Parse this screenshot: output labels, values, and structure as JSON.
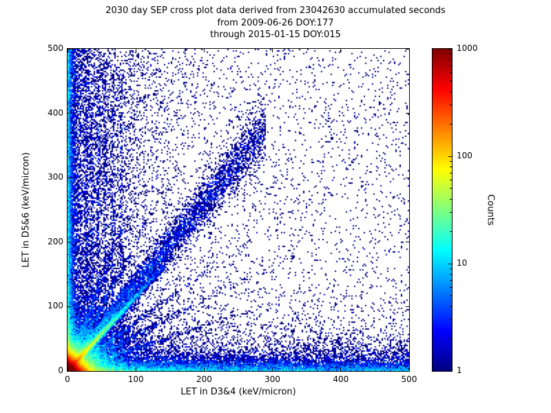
{
  "chart_data": {
    "type": "heatmap",
    "title": "2030 day SEP cross plot data derived from 23042630 accumulated seconds",
    "subtitle": [
      "from 2009-06-26 DOY:177",
      "through 2015-01-15 DOY:015"
    ],
    "xlabel": "LET in D3&4 (keV/micron)",
    "ylabel": "LET in D5&6 (keV/micron)",
    "xlim": [
      0,
      500
    ],
    "ylim": [
      0,
      500
    ],
    "xticks": [
      0,
      100,
      200,
      300,
      400,
      500
    ],
    "yticks": [
      0,
      100,
      200,
      300,
      400,
      500
    ],
    "grid": false,
    "colorbar": {
      "label": "Counts",
      "scale": "log",
      "range": [
        1,
        1000
      ],
      "ticks": [
        1,
        10,
        100,
        1000
      ],
      "colormap": "jet",
      "stops": [
        {
          "color": "#000080",
          "pos": 0
        },
        {
          "color": "#0000ff",
          "pos": 12.5
        },
        {
          "color": "#00ffff",
          "pos": 37.5
        },
        {
          "color": "#ffff00",
          "pos": 62.5
        },
        {
          "color": "#ff0000",
          "pos": 87.5
        },
        {
          "color": "#800000",
          "pos": 100
        }
      ]
    },
    "features": [
      {
        "name": "background-sparse",
        "kind": "uniform",
        "n": 3500,
        "x": [
          0,
          500
        ],
        "y": [
          0,
          500
        ]
      },
      {
        "name": "low-x-haze",
        "kind": "exp_x_uniform_y",
        "n": 7000,
        "x_mean": 55,
        "y": [
          0,
          500
        ]
      },
      {
        "name": "low-y-haze",
        "kind": "uniform_x_exp_y",
        "n": 5000,
        "x": [
          0,
          500
        ],
        "y_mean": 25
      },
      {
        "name": "origin-core",
        "kind": "exp_exp",
        "n": 60000,
        "x_mean": 7,
        "y_mean": 7
      },
      {
        "name": "origin-halo",
        "kind": "exp_exp",
        "n": 15000,
        "x_mean": 22,
        "y_mean": 22
      },
      {
        "name": "diagonal-bright",
        "kind": "diag",
        "n": 9000,
        "x_mean": 35,
        "x_max": 140,
        "slope": 1.15,
        "sd": 3
      },
      {
        "name": "diagonal-band",
        "kind": "diag_pow",
        "n": 7000,
        "x_max": 290,
        "pow": 1.7,
        "slope": 1.3,
        "sd_base": 6,
        "sd_growth": 0.06
      },
      {
        "name": "bottom-horizontal-band",
        "kind": "band_h",
        "n": 10000,
        "x_max": 500,
        "pow": 1.6,
        "y_mean": 7
      },
      {
        "name": "left-vertical-band",
        "kind": "band_v",
        "n": 7000,
        "y_max": 500,
        "pow": 1.4,
        "x_mean": 4
      },
      {
        "name": "vertical-stripes",
        "kind": "stripes",
        "centers": [
          28,
          36,
          45,
          55,
          66,
          79
        ],
        "n_each": 420,
        "sd": 1.5,
        "y_max": 460,
        "pow": 2.2
      },
      {
        "name": "radial-streaks",
        "kind": "rays",
        "slopes": [
          0.35,
          0.55,
          0.75,
          1.5,
          2.0,
          2.8
        ],
        "n_each": 900,
        "r_mean": 70,
        "sd": 2.5
      }
    ]
  }
}
